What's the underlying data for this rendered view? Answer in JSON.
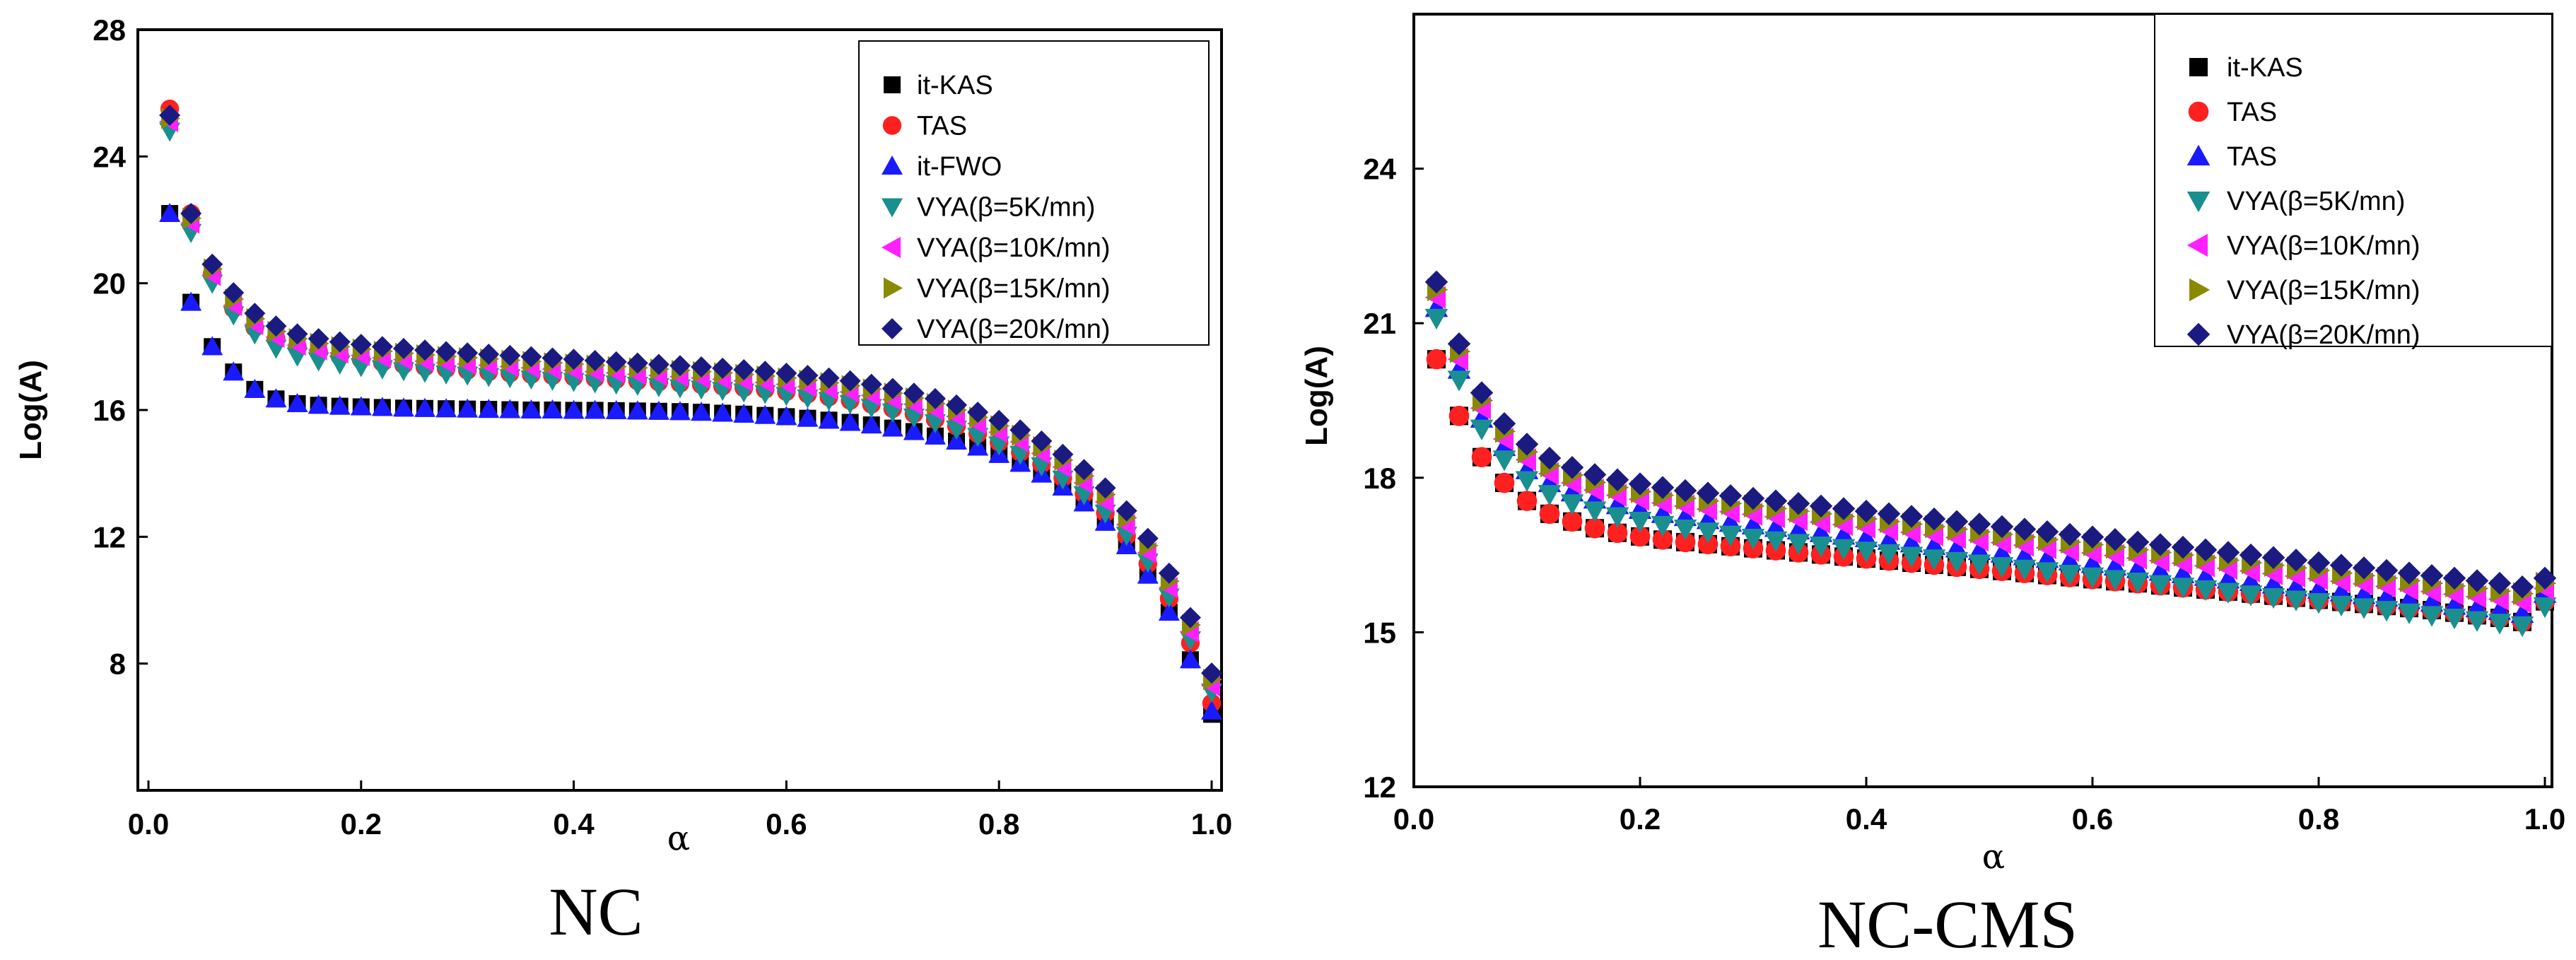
{
  "figure": {
    "panels": [
      {
        "caption": "NC"
      },
      {
        "caption": "NC-CMS"
      }
    ]
  },
  "chart_data": [
    {
      "type": "scatter",
      "panel_caption": "NC",
      "title": "",
      "xlabel": "α",
      "ylabel": "Log(A)",
      "xlim": [
        0.0,
        1.0
      ],
      "ylim": [
        4.0,
        28.0
      ],
      "xticks": [
        0.0,
        0.2,
        0.4,
        0.6,
        0.8,
        1.0
      ],
      "yticks": [
        8,
        12,
        16,
        20,
        24,
        28
      ],
      "tick_labels_x": [
        "0.0",
        "0.2",
        "0.4",
        "0.6",
        "0.8",
        "1.0"
      ],
      "tick_labels_y": [
        "8",
        "12",
        "16",
        "20",
        "24",
        "28"
      ],
      "legend_position": "top-right",
      "x": [
        0.02,
        0.04,
        0.06,
        0.08,
        0.1,
        0.12,
        0.14,
        0.16,
        0.18,
        0.2,
        0.22,
        0.24,
        0.26,
        0.28,
        0.3,
        0.32,
        0.34,
        0.36,
        0.38,
        0.4,
        0.42,
        0.44,
        0.46,
        0.48,
        0.5,
        0.52,
        0.54,
        0.56,
        0.58,
        0.6,
        0.62,
        0.64,
        0.66,
        0.68,
        0.7,
        0.72,
        0.74,
        0.76,
        0.78,
        0.8,
        0.82,
        0.84,
        0.86,
        0.88,
        0.9,
        0.92,
        0.94,
        0.96,
        0.98,
        1.0
      ],
      "series": [
        {
          "name": "it-KAS",
          "marker": "square",
          "color": "#000000",
          "values": [
            22.2,
            19.4,
            18.0,
            17.2,
            16.65,
            16.35,
            16.2,
            16.15,
            16.12,
            16.1,
            16.08,
            16.06,
            16.05,
            16.04,
            16.03,
            16.02,
            16.01,
            16.0,
            16.0,
            15.99,
            15.99,
            15.98,
            15.97,
            15.96,
            15.95,
            15.93,
            15.9,
            15.87,
            15.83,
            15.79,
            15.74,
            15.68,
            15.61,
            15.53,
            15.43,
            15.32,
            15.18,
            15.02,
            14.83,
            14.6,
            14.32,
            13.98,
            13.57,
            13.07,
            12.46,
            11.72,
            10.79,
            9.62,
            8.12,
            6.4
          ]
        },
        {
          "name": "TAS",
          "marker": "circle",
          "color": "#ff2020",
          "values": [
            25.5,
            22.2,
            20.3,
            19.2,
            18.6,
            18.25,
            18.0,
            17.85,
            17.7,
            17.6,
            17.5,
            17.43,
            17.36,
            17.3,
            17.25,
            17.2,
            17.16,
            17.12,
            17.08,
            17.04,
            17.0,
            16.96,
            16.92,
            16.88,
            16.84,
            16.8,
            16.75,
            16.7,
            16.65,
            16.58,
            16.5,
            16.41,
            16.3,
            16.18,
            16.04,
            15.88,
            15.7,
            15.49,
            15.25,
            14.98,
            14.66,
            14.29,
            13.86,
            13.35,
            12.75,
            12.03,
            11.15,
            10.05,
            8.65,
            6.75
          ]
        },
        {
          "name": "it-FWO",
          "marker": "triangle-up",
          "color": "#1a1aff",
          "values": [
            22.2,
            19.4,
            18.0,
            17.2,
            16.65,
            16.35,
            16.2,
            16.15,
            16.12,
            16.1,
            16.08,
            16.06,
            16.05,
            16.04,
            16.03,
            16.02,
            16.01,
            16.0,
            16.0,
            15.99,
            15.99,
            15.98,
            15.97,
            15.96,
            15.95,
            15.93,
            15.9,
            15.87,
            15.83,
            15.79,
            15.74,
            15.68,
            15.61,
            15.53,
            15.43,
            15.32,
            15.18,
            15.02,
            14.83,
            14.6,
            14.32,
            13.98,
            13.57,
            13.07,
            12.46,
            11.72,
            10.79,
            9.62,
            8.12,
            6.5
          ]
        },
        {
          "name": "VYA(β=5K/mn)",
          "marker": "triangle-down",
          "color": "#1a8f8f",
          "values": [
            24.8,
            21.6,
            20.0,
            19.0,
            18.4,
            17.95,
            17.7,
            17.55,
            17.45,
            17.37,
            17.3,
            17.24,
            17.19,
            17.14,
            17.1,
            17.06,
            17.02,
            16.98,
            16.94,
            16.9,
            16.86,
            16.82,
            16.78,
            16.74,
            16.7,
            16.66,
            16.62,
            16.57,
            16.52,
            16.46,
            16.38,
            16.3,
            16.2,
            16.08,
            15.94,
            15.78,
            15.6,
            15.4,
            15.17,
            14.9,
            14.6,
            14.24,
            13.82,
            13.33,
            12.75,
            12.05,
            11.2,
            10.1,
            8.75,
            7.1
          ]
        },
        {
          "name": "VYA(β=10K/mn)",
          "marker": "triangle-left",
          "color": "#ff20ff",
          "values": [
            25.1,
            21.9,
            20.25,
            19.3,
            18.7,
            18.3,
            18.05,
            17.9,
            17.8,
            17.72,
            17.65,
            17.59,
            17.54,
            17.49,
            17.45,
            17.41,
            17.37,
            17.33,
            17.29,
            17.25,
            17.21,
            17.17,
            17.13,
            17.09,
            17.05,
            17.01,
            16.97,
            16.92,
            16.87,
            16.81,
            16.74,
            16.66,
            16.57,
            16.46,
            16.33,
            16.18,
            16.0,
            15.8,
            15.57,
            15.3,
            15.0,
            14.63,
            14.2,
            13.7,
            13.1,
            12.38,
            11.5,
            10.4,
            9.0,
            7.3
          ]
        },
        {
          "name": "VYA(β=15K/mn)",
          "marker": "triangle-right",
          "color": "#8a8a00",
          "values": [
            25.2,
            22.05,
            20.45,
            19.5,
            18.88,
            18.48,
            18.25,
            18.1,
            18.0,
            17.92,
            17.85,
            17.79,
            17.74,
            17.69,
            17.65,
            17.61,
            17.57,
            17.53,
            17.49,
            17.45,
            17.41,
            17.37,
            17.33,
            17.29,
            17.25,
            17.21,
            17.17,
            17.12,
            17.07,
            17.01,
            16.94,
            16.86,
            16.77,
            16.66,
            16.53,
            16.38,
            16.2,
            16.0,
            15.77,
            15.5,
            15.2,
            14.84,
            14.42,
            13.92,
            13.33,
            12.6,
            11.72,
            10.6,
            9.22,
            7.5
          ]
        },
        {
          "name": "VYA(β=20K/mn)",
          "marker": "diamond",
          "color": "#1a1a80",
          "values": [
            25.3,
            22.2,
            20.6,
            19.7,
            19.05,
            18.65,
            18.4,
            18.25,
            18.15,
            18.07,
            18.0,
            17.94,
            17.89,
            17.84,
            17.8,
            17.76,
            17.72,
            17.68,
            17.64,
            17.6,
            17.56,
            17.52,
            17.48,
            17.44,
            17.4,
            17.36,
            17.32,
            17.27,
            17.22,
            17.16,
            17.09,
            17.01,
            16.92,
            16.81,
            16.68,
            16.53,
            16.36,
            16.16,
            15.93,
            15.67,
            15.37,
            15.02,
            14.6,
            14.12,
            13.54,
            12.82,
            11.95,
            10.85,
            9.45,
            7.7
          ]
        }
      ]
    },
    {
      "type": "scatter",
      "panel_caption": "NC-CMS",
      "title": "",
      "xlabel": "α",
      "ylabel": "Log(A)",
      "xlim": [
        0.0,
        1.0
      ],
      "ylim": [
        12.0,
        27.0
      ],
      "xticks": [
        0.0,
        0.2,
        0.4,
        0.6,
        0.8,
        1.0
      ],
      "yticks": [
        12,
        15,
        18,
        21,
        24
      ],
      "tick_labels_x": [
        "0.0",
        "0.2",
        "0.4",
        "0.6",
        "0.8",
        "1.0"
      ],
      "tick_labels_y": [
        "12",
        "15",
        "18",
        "21",
        "24"
      ],
      "legend_position": "top-right",
      "x": [
        0.02,
        0.04,
        0.06,
        0.08,
        0.1,
        0.12,
        0.14,
        0.16,
        0.18,
        0.2,
        0.22,
        0.24,
        0.26,
        0.28,
        0.3,
        0.32,
        0.34,
        0.36,
        0.38,
        0.4,
        0.42,
        0.44,
        0.46,
        0.48,
        0.5,
        0.52,
        0.54,
        0.56,
        0.58,
        0.6,
        0.62,
        0.64,
        0.66,
        0.68,
        0.7,
        0.72,
        0.74,
        0.76,
        0.78,
        0.8,
        0.82,
        0.84,
        0.86,
        0.88,
        0.9,
        0.92,
        0.94,
        0.96,
        0.98,
        1.0
      ],
      "series": [
        {
          "name": "it-KAS",
          "marker": "square",
          "color": "#000000",
          "values": [
            20.3,
            19.2,
            18.4,
            17.9,
            17.55,
            17.3,
            17.15,
            17.02,
            16.93,
            16.86,
            16.8,
            16.75,
            16.71,
            16.67,
            16.63,
            16.59,
            16.55,
            16.51,
            16.47,
            16.43,
            16.39,
            16.35,
            16.31,
            16.27,
            16.23,
            16.19,
            16.15,
            16.11,
            16.07,
            16.03,
            15.99,
            15.95,
            15.91,
            15.87,
            15.83,
            15.79,
            15.75,
            15.71,
            15.67,
            15.63,
            15.59,
            15.55,
            15.51,
            15.47,
            15.43,
            15.38,
            15.33,
            15.28,
            15.2,
            15.6
          ]
        },
        {
          "name": "TAS",
          "marker": "circle",
          "color": "#ff2020",
          "values": [
            20.3,
            19.2,
            18.4,
            17.9,
            17.55,
            17.3,
            17.15,
            17.02,
            16.93,
            16.86,
            16.8,
            16.75,
            16.71,
            16.67,
            16.63,
            16.59,
            16.55,
            16.51,
            16.47,
            16.43,
            16.39,
            16.35,
            16.31,
            16.27,
            16.23,
            16.19,
            16.15,
            16.11,
            16.07,
            16.03,
            15.99,
            15.95,
            15.91,
            15.87,
            15.83,
            15.79,
            15.75,
            15.71,
            15.67,
            15.63,
            15.59,
            15.55,
            15.51,
            15.47,
            15.43,
            15.38,
            15.33,
            15.28,
            15.2,
            15.6
          ]
        },
        {
          "name": "TAS",
          "marker": "triangle-up",
          "color": "#1a1aff",
          "values": [
            21.3,
            20.1,
            19.15,
            18.6,
            18.15,
            17.9,
            17.72,
            17.58,
            17.47,
            17.38,
            17.3,
            17.24,
            17.18,
            17.13,
            17.08,
            17.03,
            16.98,
            16.93,
            16.88,
            16.83,
            16.78,
            16.73,
            16.68,
            16.63,
            16.58,
            16.53,
            16.48,
            16.43,
            16.38,
            16.33,
            16.28,
            16.23,
            16.18,
            16.13,
            16.08,
            16.03,
            15.98,
            15.93,
            15.88,
            15.83,
            15.78,
            15.73,
            15.68,
            15.63,
            15.58,
            15.52,
            15.47,
            15.42,
            15.36,
            15.75
          ]
        },
        {
          "name": "VYA(β=5K/mn)",
          "marker": "triangle-down",
          "color": "#1a8f8f",
          "values": [
            21.1,
            19.9,
            18.95,
            18.35,
            17.95,
            17.68,
            17.5,
            17.36,
            17.25,
            17.16,
            17.08,
            17.01,
            16.95,
            16.89,
            16.83,
            16.78,
            16.73,
            16.68,
            16.63,
            16.58,
            16.53,
            16.48,
            16.43,
            16.38,
            16.33,
            16.28,
            16.23,
            16.18,
            16.13,
            16.08,
            16.03,
            15.98,
            15.93,
            15.88,
            15.83,
            15.78,
            15.73,
            15.68,
            15.63,
            15.58,
            15.53,
            15.48,
            15.43,
            15.38,
            15.33,
            15.28,
            15.23,
            15.18,
            15.13,
            15.5
          ]
        },
        {
          "name": "VYA(β=10K/mn)",
          "marker": "triangle-left",
          "color": "#ff20ff",
          "values": [
            21.5,
            20.3,
            19.35,
            18.75,
            18.35,
            18.08,
            17.9,
            17.76,
            17.66,
            17.58,
            17.51,
            17.45,
            17.39,
            17.34,
            17.29,
            17.24,
            17.19,
            17.14,
            17.09,
            17.04,
            16.99,
            16.94,
            16.89,
            16.84,
            16.79,
            16.74,
            16.69,
            16.64,
            16.59,
            16.54,
            16.49,
            16.44,
            16.39,
            16.34,
            16.29,
            16.24,
            16.19,
            16.14,
            16.09,
            16.04,
            15.99,
            15.94,
            15.89,
            15.84,
            15.79,
            15.74,
            15.69,
            15.64,
            15.59,
            15.85
          ]
        },
        {
          "name": "VYA(β=15K/mn)",
          "marker": "triangle-right",
          "color": "#8a8a00",
          "values": [
            21.65,
            20.45,
            19.5,
            18.9,
            18.5,
            18.23,
            18.05,
            17.91,
            17.81,
            17.73,
            17.66,
            17.6,
            17.55,
            17.5,
            17.45,
            17.4,
            17.35,
            17.3,
            17.25,
            17.2,
            17.15,
            17.1,
            17.05,
            17.0,
            16.95,
            16.9,
            16.85,
            16.8,
            16.75,
            16.7,
            16.65,
            16.6,
            16.55,
            16.5,
            16.45,
            16.4,
            16.35,
            16.3,
            16.25,
            16.2,
            16.15,
            16.1,
            16.05,
            16.0,
            15.95,
            15.9,
            15.85,
            15.8,
            15.75,
            15.95
          ]
        },
        {
          "name": "VYA(β=20K/mn)",
          "marker": "diamond",
          "color": "#1a1a80",
          "values": [
            21.8,
            20.6,
            19.65,
            19.05,
            18.65,
            18.38,
            18.2,
            18.06,
            17.96,
            17.88,
            17.81,
            17.75,
            17.7,
            17.65,
            17.6,
            17.55,
            17.5,
            17.45,
            17.4,
            17.35,
            17.3,
            17.25,
            17.2,
            17.15,
            17.1,
            17.05,
            17.0,
            16.95,
            16.9,
            16.85,
            16.8,
            16.75,
            16.7,
            16.65,
            16.6,
            16.55,
            16.5,
            16.45,
            16.4,
            16.35,
            16.3,
            16.25,
            16.2,
            16.15,
            16.1,
            16.05,
            16.0,
            15.95,
            15.88,
            16.05
          ]
        }
      ]
    }
  ]
}
